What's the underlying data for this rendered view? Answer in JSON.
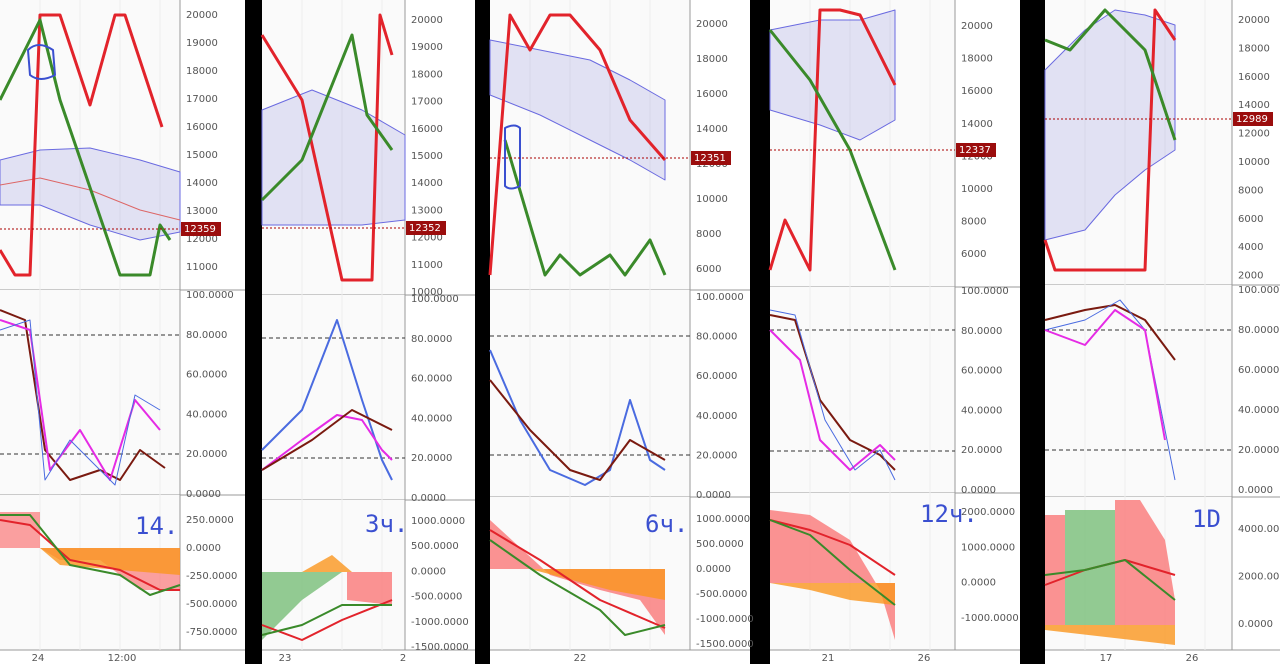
{
  "panels": [
    {
      "price_ticks": [
        "20000",
        "19000",
        "18000",
        "17000",
        "16000",
        "15000",
        "14000",
        "13000",
        "12000",
        "11000"
      ],
      "price_label": "12359",
      "osc_ticks": [
        "100.0000",
        "80.0000",
        "60.0000",
        "40.0000",
        "20.0000",
        "0.0000"
      ],
      "macd_ticks": [
        "250.0000",
        "0.0000",
        "-250.0000",
        "-500.0000",
        "-750.0000"
      ],
      "x_labels": [
        "24",
        "12:00"
      ],
      "note": "14."
    },
    {
      "price_ticks": [
        "20000",
        "19000",
        "18000",
        "17000",
        "16000",
        "15000",
        "14000",
        "13000",
        "12000",
        "11000",
        "10000"
      ],
      "price_label": "12352",
      "osc_ticks": [
        "100.0000",
        "80.0000",
        "60.0000",
        "40.0000",
        "20.0000",
        "0.0000"
      ],
      "macd_ticks": [
        "1000.0000",
        "500.0000",
        "0.0000",
        "-500.0000",
        "-1000.0000",
        "-1500.0000"
      ],
      "x_labels": [
        "23",
        "2"
      ],
      "note": "3ч."
    },
    {
      "price_ticks": [
        "20000",
        "18000",
        "16000",
        "14000",
        "12000",
        "10000",
        "8000",
        "6000"
      ],
      "price_label": "12351",
      "osc_ticks": [
        "100.0000",
        "80.0000",
        "60.0000",
        "40.0000",
        "20.0000",
        "0.0000"
      ],
      "macd_ticks": [
        "1000.0000",
        "500.0000",
        "0.0000",
        "-500.0000",
        "-1000.0000",
        "-1500.0000"
      ],
      "x_labels": [
        "22"
      ],
      "note": "6ч."
    },
    {
      "price_ticks": [
        "20000",
        "18000",
        "16000",
        "14000",
        "12000",
        "10000",
        "8000",
        "6000"
      ],
      "price_label": "12337",
      "osc_ticks": [
        "100.0000",
        "80.0000",
        "60.0000",
        "40.0000",
        "20.0000",
        "0.0000"
      ],
      "macd_ticks": [
        "2000.0000",
        "1000.0000",
        "0.0000",
        "-1000.0000"
      ],
      "x_labels": [
        "21",
        "26"
      ],
      "note": "12ч."
    },
    {
      "price_ticks": [
        "20000",
        "18000",
        "16000",
        "14000",
        "12000",
        "10000",
        "8000",
        "6000",
        "4000",
        "2000"
      ],
      "price_label": "12989",
      "osc_ticks": [
        "100.0000",
        "80.0000",
        "60.0000",
        "40.0000",
        "20.0000",
        "0.0000"
      ],
      "macd_ticks": [
        "4000.0000",
        "2000.0000",
        "0.0000"
      ],
      "x_labels": [
        "17",
        "26"
      ],
      "note": "1D"
    }
  ]
}
